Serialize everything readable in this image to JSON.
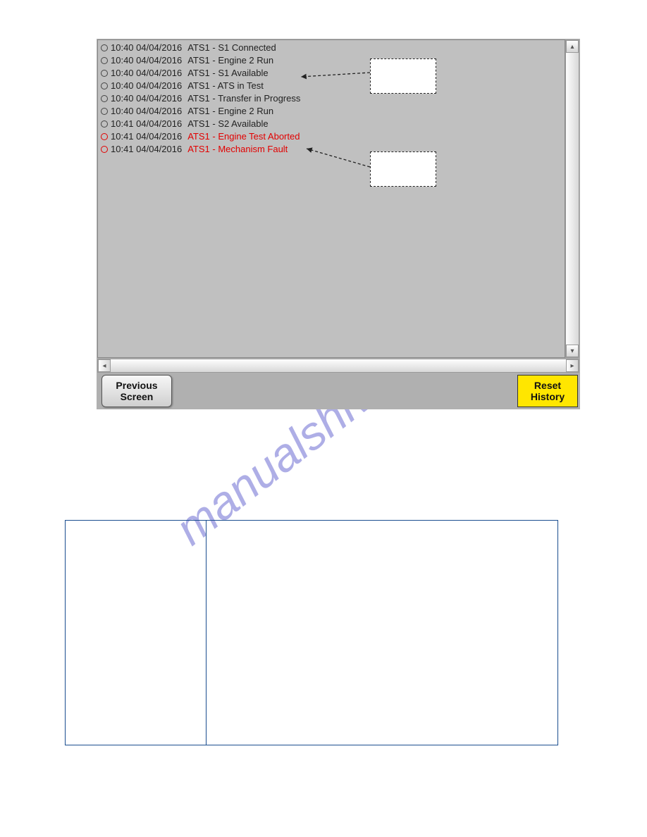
{
  "colors": {
    "log_bg": "#c0c0c0",
    "panel_bg": "#b0b0b0",
    "normal_text": "#222222",
    "alarm_text": "#e20000",
    "reset_bg": "#ffe600",
    "border": "#9a9a9a",
    "watermark": "rgba(108,108,210,0.55)",
    "table_border": "#1a4d8f"
  },
  "log": {
    "entries": [
      {
        "time": "10:40",
        "date": "04/04/2016",
        "msg": "ATS1 - S1 Connected",
        "alarm": false
      },
      {
        "time": "10:40",
        "date": "04/04/2016",
        "msg": "ATS1 - Engine 2 Run",
        "alarm": false
      },
      {
        "time": "10:40",
        "date": "04/04/2016",
        "msg": "ATS1 - S1 Available",
        "alarm": false
      },
      {
        "time": "10:40",
        "date": "04/04/2016",
        "msg": "ATS1 - ATS in Test",
        "alarm": false
      },
      {
        "time": "10:40",
        "date": "04/04/2016",
        "msg": "ATS1 - Transfer in Progress",
        "alarm": false
      },
      {
        "time": "10:40",
        "date": "04/04/2016",
        "msg": "ATS1 - Engine 2 Run",
        "alarm": false
      },
      {
        "time": "10:41",
        "date": "04/04/2016",
        "msg": "ATS1 - S2 Available",
        "alarm": false
      },
      {
        "time": "10:41",
        "date": "04/04/2016",
        "msg": "ATS1 - Engine Test Aborted",
        "alarm": true
      },
      {
        "time": "10:41",
        "date": "04/04/2016",
        "msg": "ATS1 - Mechanism Fault",
        "alarm": true
      }
    ]
  },
  "buttons": {
    "previous_l1": "Previous",
    "previous_l2": "Screen",
    "reset_l1": "Reset",
    "reset_l2": "History"
  },
  "watermark_text": "manualshive.com"
}
